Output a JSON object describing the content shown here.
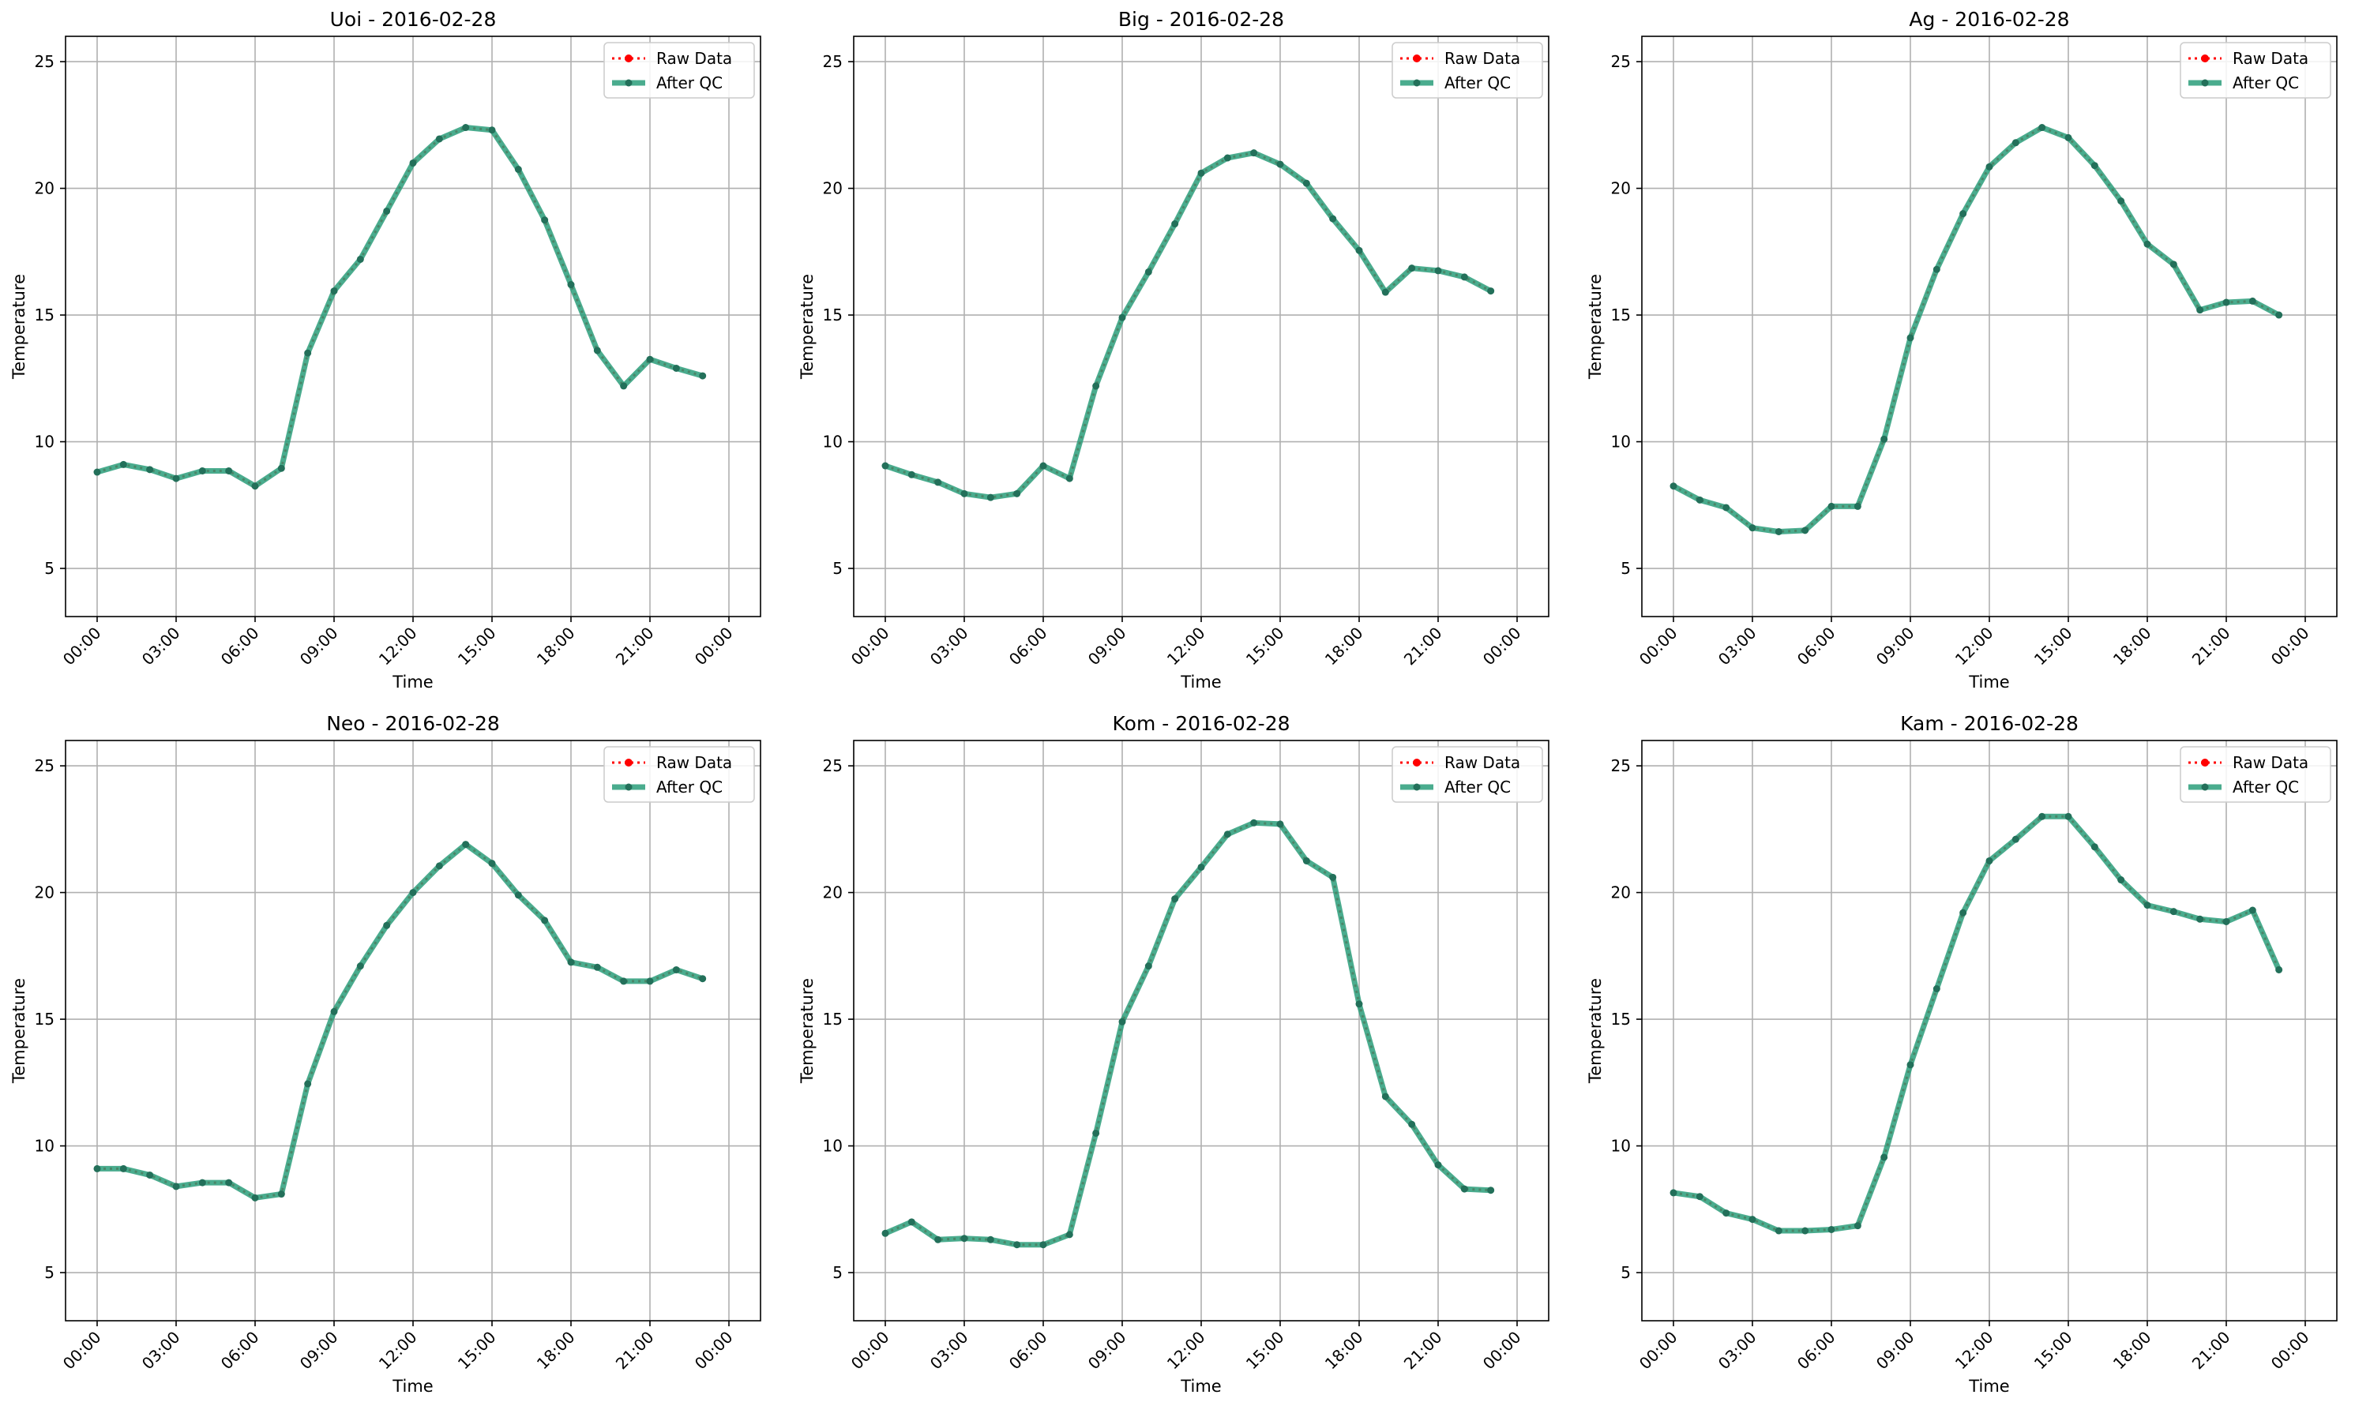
{
  "chart_data": [
    {
      "type": "line",
      "title": "Uoi - 2016-02-28",
      "xlabel": "Time",
      "ylabel": "Temperature",
      "xticks": [
        "00:00",
        "03:00",
        "06:00",
        "09:00",
        "12:00",
        "15:00",
        "18:00",
        "21:00",
        "00:00"
      ],
      "yticks": [
        5,
        10,
        15,
        20,
        25
      ],
      "ylim": [
        3.1,
        26
      ],
      "grid": true,
      "legend": "top-right",
      "x": [
        "00:00",
        "01:00",
        "02:00",
        "03:00",
        "04:00",
        "05:00",
        "06:00",
        "07:00",
        "08:00",
        "09:00",
        "10:00",
        "11:00",
        "12:00",
        "13:00",
        "14:00",
        "15:00",
        "16:00",
        "17:00",
        "18:00",
        "19:00",
        "20:00",
        "21:00",
        "22:00",
        "23:00"
      ],
      "series": [
        {
          "name": "Raw Data",
          "color": "#ff0000",
          "values": [
            8.8,
            9.1,
            8.9,
            8.55,
            8.85,
            8.85,
            8.25,
            8.95,
            13.5,
            15.95,
            17.2,
            19.1,
            21.0,
            21.95,
            22.4,
            22.3,
            20.75,
            18.75,
            16.2,
            13.6,
            12.2,
            13.25,
            12.9,
            12.6
          ]
        },
        {
          "name": "After QC",
          "color": "#2a9d7a",
          "values": [
            8.8,
            9.1,
            8.9,
            8.55,
            8.85,
            8.85,
            8.25,
            8.95,
            13.5,
            15.95,
            17.2,
            19.1,
            21.0,
            21.95,
            22.4,
            22.3,
            20.75,
            18.75,
            16.2,
            13.6,
            12.2,
            13.25,
            12.9,
            12.6
          ]
        }
      ]
    },
    {
      "type": "line",
      "title": "Big - 2016-02-28",
      "xlabel": "Time",
      "ylabel": "Temperature",
      "xticks": [
        "00:00",
        "03:00",
        "06:00",
        "09:00",
        "12:00",
        "15:00",
        "18:00",
        "21:00",
        "00:00"
      ],
      "yticks": [
        5,
        10,
        15,
        20,
        25
      ],
      "ylim": [
        3.1,
        26
      ],
      "grid": true,
      "legend": "top-right",
      "x": [
        "00:00",
        "01:00",
        "02:00",
        "03:00",
        "04:00",
        "05:00",
        "06:00",
        "07:00",
        "08:00",
        "09:00",
        "10:00",
        "11:00",
        "12:00",
        "13:00",
        "14:00",
        "15:00",
        "16:00",
        "17:00",
        "18:00",
        "19:00",
        "20:00",
        "21:00",
        "22:00",
        "23:00"
      ],
      "series": [
        {
          "name": "Raw Data",
          "color": "#ff0000",
          "values": [
            9.05,
            8.7,
            8.4,
            7.95,
            7.8,
            7.95,
            9.05,
            8.55,
            12.2,
            14.9,
            16.7,
            18.6,
            20.6,
            21.2,
            21.4,
            20.95,
            20.2,
            18.8,
            17.55,
            15.9,
            16.85,
            16.75,
            16.5,
            15.95
          ]
        },
        {
          "name": "After QC",
          "color": "#2a9d7a",
          "values": [
            9.05,
            8.7,
            8.4,
            7.95,
            7.8,
            7.95,
            9.05,
            8.55,
            12.2,
            14.9,
            16.7,
            18.6,
            20.6,
            21.2,
            21.4,
            20.95,
            20.2,
            18.8,
            17.55,
            15.9,
            16.85,
            16.75,
            16.5,
            15.95
          ]
        }
      ]
    },
    {
      "type": "line",
      "title": "Ag - 2016-02-28",
      "xlabel": "Time",
      "ylabel": "Temperature",
      "xticks": [
        "00:00",
        "03:00",
        "06:00",
        "09:00",
        "12:00",
        "15:00",
        "18:00",
        "21:00",
        "00:00"
      ],
      "yticks": [
        5,
        10,
        15,
        20,
        25
      ],
      "ylim": [
        3.1,
        26
      ],
      "grid": true,
      "legend": "top-right",
      "x": [
        "00:00",
        "01:00",
        "02:00",
        "03:00",
        "04:00",
        "05:00",
        "06:00",
        "07:00",
        "08:00",
        "09:00",
        "10:00",
        "11:00",
        "12:00",
        "13:00",
        "14:00",
        "15:00",
        "16:00",
        "17:00",
        "18:00",
        "19:00",
        "20:00",
        "21:00",
        "22:00",
        "23:00"
      ],
      "series": [
        {
          "name": "Raw Data",
          "color": "#ff0000",
          "values": [
            8.25,
            7.7,
            7.4,
            6.6,
            6.45,
            6.5,
            7.45,
            7.45,
            10.1,
            14.1,
            16.8,
            19.0,
            20.85,
            21.8,
            22.4,
            22.0,
            20.9,
            19.5,
            17.8,
            17.0,
            15.2,
            15.5,
            15.55,
            15.0
          ]
        },
        {
          "name": "After QC",
          "color": "#2a9d7a",
          "values": [
            8.25,
            7.7,
            7.4,
            6.6,
            6.45,
            6.5,
            7.45,
            7.45,
            10.1,
            14.1,
            16.8,
            19.0,
            20.85,
            21.8,
            22.4,
            22.0,
            20.9,
            19.5,
            17.8,
            17.0,
            15.2,
            15.5,
            15.55,
            15.0
          ]
        }
      ]
    },
    {
      "type": "line",
      "title": "Neo - 2016-02-28",
      "xlabel": "Time",
      "ylabel": "Temperature",
      "xticks": [
        "00:00",
        "03:00",
        "06:00",
        "09:00",
        "12:00",
        "15:00",
        "18:00",
        "21:00",
        "00:00"
      ],
      "yticks": [
        5,
        10,
        15,
        20,
        25
      ],
      "ylim": [
        3.1,
        26
      ],
      "grid": true,
      "legend": "top-right",
      "x": [
        "00:00",
        "01:00",
        "02:00",
        "03:00",
        "04:00",
        "05:00",
        "06:00",
        "07:00",
        "08:00",
        "09:00",
        "10:00",
        "11:00",
        "12:00",
        "13:00",
        "14:00",
        "15:00",
        "16:00",
        "17:00",
        "18:00",
        "19:00",
        "20:00",
        "21:00",
        "22:00",
        "23:00"
      ],
      "series": [
        {
          "name": "Raw Data",
          "color": "#ff0000",
          "values": [
            9.1,
            9.1,
            8.85,
            8.4,
            8.55,
            8.55,
            7.95,
            8.1,
            12.45,
            15.3,
            17.1,
            18.7,
            20.0,
            21.05,
            21.9,
            21.15,
            19.9,
            18.9,
            17.25,
            17.05,
            16.5,
            16.5,
            16.95,
            16.6
          ]
        },
        {
          "name": "After QC",
          "color": "#2a9d7a",
          "values": [
            9.1,
            9.1,
            8.85,
            8.4,
            8.55,
            8.55,
            7.95,
            8.1,
            12.45,
            15.3,
            17.1,
            18.7,
            20.0,
            21.05,
            21.9,
            21.15,
            19.9,
            18.9,
            17.25,
            17.05,
            16.5,
            16.5,
            16.95,
            16.6
          ]
        }
      ]
    },
    {
      "type": "line",
      "title": "Kom - 2016-02-28",
      "xlabel": "Time",
      "ylabel": "Temperature",
      "xticks": [
        "00:00",
        "03:00",
        "06:00",
        "09:00",
        "12:00",
        "15:00",
        "18:00",
        "21:00",
        "00:00"
      ],
      "yticks": [
        5,
        10,
        15,
        20,
        25
      ],
      "ylim": [
        3.1,
        26
      ],
      "grid": true,
      "legend": "top-right",
      "x": [
        "00:00",
        "01:00",
        "02:00",
        "03:00",
        "04:00",
        "05:00",
        "06:00",
        "07:00",
        "08:00",
        "09:00",
        "10:00",
        "11:00",
        "12:00",
        "13:00",
        "14:00",
        "15:00",
        "16:00",
        "17:00",
        "18:00",
        "19:00",
        "20:00",
        "21:00",
        "22:00",
        "23:00"
      ],
      "series": [
        {
          "name": "Raw Data",
          "color": "#ff0000",
          "values": [
            6.55,
            7.0,
            6.3,
            6.35,
            6.3,
            6.1,
            6.1,
            6.5,
            10.5,
            14.9,
            17.1,
            19.75,
            21.0,
            22.3,
            22.75,
            22.7,
            21.25,
            20.6,
            15.6,
            11.95,
            10.85,
            9.25,
            8.3,
            8.25
          ]
        },
        {
          "name": "After QC",
          "color": "#2a9d7a",
          "values": [
            6.55,
            7.0,
            6.3,
            6.35,
            6.3,
            6.1,
            6.1,
            6.5,
            10.5,
            14.9,
            17.1,
            19.75,
            21.0,
            22.3,
            22.75,
            22.7,
            21.25,
            20.6,
            15.6,
            11.95,
            10.85,
            9.25,
            8.3,
            8.25
          ]
        }
      ]
    },
    {
      "type": "line",
      "title": "Kam - 2016-02-28",
      "xlabel": "Time",
      "ylabel": "Temperature",
      "xticks": [
        "00:00",
        "03:00",
        "06:00",
        "09:00",
        "12:00",
        "15:00",
        "18:00",
        "21:00",
        "00:00"
      ],
      "yticks": [
        5,
        10,
        15,
        20,
        25
      ],
      "ylim": [
        3.1,
        26
      ],
      "grid": true,
      "legend": "top-right",
      "x": [
        "00:00",
        "01:00",
        "02:00",
        "03:00",
        "04:00",
        "05:00",
        "06:00",
        "07:00",
        "08:00",
        "09:00",
        "10:00",
        "11:00",
        "12:00",
        "13:00",
        "14:00",
        "15:00",
        "16:00",
        "17:00",
        "18:00",
        "19:00",
        "20:00",
        "21:00",
        "22:00",
        "23:00"
      ],
      "series": [
        {
          "name": "Raw Data",
          "color": "#ff0000",
          "values": [
            8.15,
            8.0,
            7.35,
            7.1,
            6.65,
            6.65,
            6.7,
            6.85,
            9.55,
            13.2,
            16.2,
            19.2,
            21.25,
            22.1,
            23.0,
            23.0,
            21.8,
            20.5,
            19.5,
            19.25,
            18.95,
            18.85,
            19.3,
            16.95
          ]
        },
        {
          "name": "After QC",
          "color": "#2a9d7a",
          "values": [
            8.15,
            8.0,
            7.35,
            7.1,
            6.65,
            6.65,
            6.7,
            6.85,
            9.55,
            13.2,
            16.2,
            19.2,
            21.25,
            22.1,
            23.0,
            23.0,
            21.8,
            20.5,
            19.5,
            19.25,
            18.95,
            18.85,
            19.3,
            16.95
          ]
        }
      ]
    }
  ]
}
